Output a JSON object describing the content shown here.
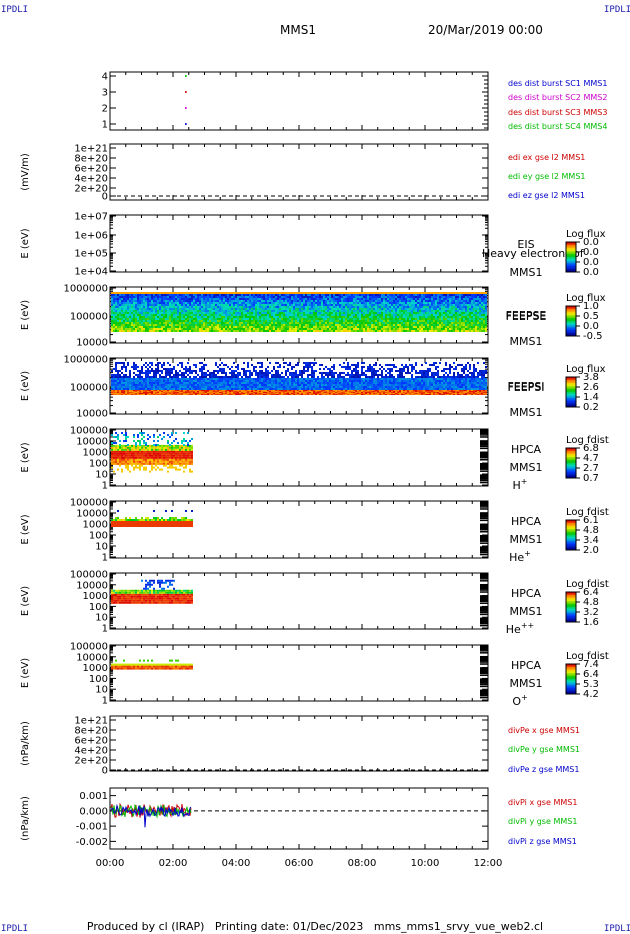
{
  "header": {
    "corner_label": "IPDLI",
    "title": "MMS1",
    "datetime": "20/Mar/2019 00:00"
  },
  "footer": {
    "text": "Produced by cl (IRAP)   Printing date: 01/Dec/2023   mms_mms1_srvy_vue_web2.cl"
  },
  "time_axis": {
    "range_hours": [
      0,
      12
    ],
    "tick_labels": [
      "00:00",
      "02:00",
      "04:00",
      "06:00",
      "08:00",
      "10:00",
      "12:00"
    ],
    "data_end_hour": 2.6
  },
  "chart_data": [
    {
      "type": "scatter",
      "name_label": "",
      "ylabel": "",
      "yticks": [
        "1",
        "2",
        "3",
        "4"
      ],
      "legend": [
        {
          "text": "des dist burst SC1 MMS1",
          "color": "#0000cc"
        },
        {
          "text": "des dist burst SC2 MMS2",
          "color": "#cc00cc"
        },
        {
          "text": "des dist burst SC3 MMS3",
          "color": "#cc0000"
        },
        {
          "text": "des dist burst SC4 MMS4",
          "color": "#00bb00"
        }
      ],
      "points": [
        {
          "x": 2.4,
          "y": 4,
          "color": "#00bb00"
        },
        {
          "x": 2.4,
          "y": 3,
          "color": "#cc0000"
        },
        {
          "x": 2.4,
          "y": 2,
          "color": "#cc00cc"
        },
        {
          "x": 2.4,
          "y": 1,
          "color": "#0000cc"
        }
      ]
    },
    {
      "type": "line",
      "ylabel": "(mV/m)",
      "yticks": [
        "1e+21",
        "8e+20",
        "6e+20",
        "4e+20",
        "2e+20",
        "0"
      ],
      "legend": [
        {
          "text": "edi ex gse l2 MMS1",
          "color": "#cc0000"
        },
        {
          "text": "edi ey gse l2 MMS1",
          "color": "#00bb00"
        },
        {
          "text": "edi ez gse l2 MMS1",
          "color": "#0000cc"
        }
      ]
    },
    {
      "type": "heatmap",
      "ylabel": "E (eV)",
      "yticks": [
        "1e+07",
        "1e+06",
        "1e+05",
        "1e+04"
      ],
      "name_label": "EIS",
      "name_label2": "MMS1",
      "overlay_text": "Heavy electron tof",
      "colorbar": {
        "title": "Log flux",
        "labels": [
          "0.0",
          "0.0",
          "0.0",
          "0.0"
        ]
      },
      "data_present": false
    },
    {
      "type": "heatmap",
      "ylabel": "E (eV)",
      "yticks": [
        "1000000",
        "100000",
        "10000"
      ],
      "name_label": "FEEPSE",
      "name_label2": "MMS1",
      "colorbar": {
        "title": "Log flux",
        "labels": [
          "1.0",
          "0.5",
          "0.0",
          "-0.5"
        ]
      },
      "data_present": true
    },
    {
      "type": "heatmap",
      "ylabel": "E (eV)",
      "yticks": [
        "1000000",
        "100000",
        "10000"
      ],
      "name_label": "FEEPSI",
      "name_label2": "MMS1",
      "colorbar": {
        "title": "Log flux",
        "labels": [
          "3.8",
          "2.6",
          "1.4",
          "0.2"
        ]
      },
      "data_present": true
    },
    {
      "type": "heatmap",
      "ylabel": "E (eV)",
      "yticks": [
        "100000",
        "10000",
        "1000",
        "100",
        "10",
        "1"
      ],
      "name_label": "HPCA",
      "name_label2": "MMS1",
      "species": "H",
      "species_sup": "+",
      "colorbar": {
        "title": "Log fdist",
        "labels": [
          "6.8",
          "4.7",
          "2.7",
          "0.7"
        ]
      },
      "data_present": true
    },
    {
      "type": "heatmap",
      "ylabel": "E (eV)",
      "yticks": [
        "100000",
        "10000",
        "1000",
        "100",
        "10",
        "1"
      ],
      "name_label": "HPCA",
      "name_label2": "MMS1",
      "species": "He",
      "species_sup": "+",
      "colorbar": {
        "title": "Log fdist",
        "labels": [
          "6.1",
          "4.8",
          "3.4",
          "2.0"
        ]
      },
      "data_present": true
    },
    {
      "type": "heatmap",
      "ylabel": "E (eV)",
      "yticks": [
        "100000",
        "10000",
        "1000",
        "100",
        "10",
        "1"
      ],
      "name_label": "HPCA",
      "name_label2": "MMS1",
      "species": "He",
      "species_sup": "++",
      "colorbar": {
        "title": "Log fdist",
        "labels": [
          "6.4",
          "4.8",
          "3.2",
          "1.6"
        ]
      },
      "data_present": true
    },
    {
      "type": "heatmap",
      "ylabel": "E (eV)",
      "yticks": [
        "100000",
        "10000",
        "1000",
        "100",
        "10",
        "1"
      ],
      "name_label": "HPCA",
      "name_label2": "MMS1",
      "species": "O",
      "species_sup": "+",
      "colorbar": {
        "title": "Log fdist",
        "labels": [
          "7.4",
          "6.4",
          "5.3",
          "4.2"
        ]
      },
      "data_present": true
    },
    {
      "type": "line",
      "ylabel": "(nPa/km)",
      "yticks": [
        "1e+21",
        "8e+20",
        "6e+20",
        "4e+20",
        "2e+20",
        "0"
      ],
      "legend": [
        {
          "text": "divPe x gse MMS1",
          "color": "#cc0000"
        },
        {
          "text": "divPe y gse MMS1",
          "color": "#00bb00"
        },
        {
          "text": "divPe z gse MMS1",
          "color": "#0000cc"
        }
      ]
    },
    {
      "type": "line",
      "ylabel": "(nPa/km)",
      "yticks": [
        "0.001",
        "0.000",
        "-0.001",
        "-0.002"
      ],
      "ylim": [
        -0.0025,
        0.0015
      ],
      "legend": [
        {
          "text": "divPi x gse MMS1",
          "color": "#cc0000"
        },
        {
          "text": "divPi y gse MMS1",
          "color": "#00bb00"
        },
        {
          "text": "divPi z gse MMS1",
          "color": "#0000cc"
        }
      ]
    }
  ]
}
